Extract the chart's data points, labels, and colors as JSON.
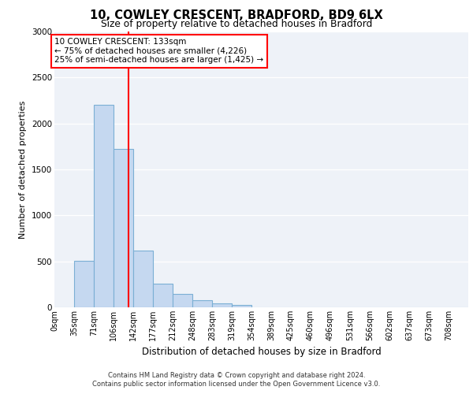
{
  "title_line1": "10, COWLEY CRESCENT, BRADFORD, BD9 6LX",
  "title_line2": "Size of property relative to detached houses in Bradford",
  "xlabel": "Distribution of detached houses by size in Bradford",
  "ylabel": "Number of detached properties",
  "categories": [
    "0sqm",
    "35sqm",
    "71sqm",
    "106sqm",
    "142sqm",
    "177sqm",
    "212sqm",
    "248sqm",
    "283sqm",
    "319sqm",
    "354sqm",
    "389sqm",
    "425sqm",
    "460sqm",
    "496sqm",
    "531sqm",
    "566sqm",
    "602sqm",
    "637sqm",
    "673sqm",
    "708sqm"
  ],
  "bar_heights": [
    0,
    510,
    2200,
    1720,
    620,
    260,
    150,
    80,
    40,
    25,
    0,
    0,
    0,
    0,
    0,
    0,
    0,
    0,
    0,
    0,
    0
  ],
  "bar_color": "#c5d8f0",
  "bar_edge_color": "#7bafd4",
  "vline_color": "red",
  "annotation_text": "10 COWLEY CRESCENT: 133sqm\n← 75% of detached houses are smaller (4,226)\n25% of semi-detached houses are larger (1,425) →",
  "ylim": [
    0,
    3000
  ],
  "yticks": [
    0,
    500,
    1000,
    1500,
    2000,
    2500,
    3000
  ],
  "background_color": "#eef2f8",
  "footer_line1": "Contains HM Land Registry data © Crown copyright and database right 2024.",
  "footer_line2": "Contains public sector information licensed under the Open Government Licence v3.0."
}
